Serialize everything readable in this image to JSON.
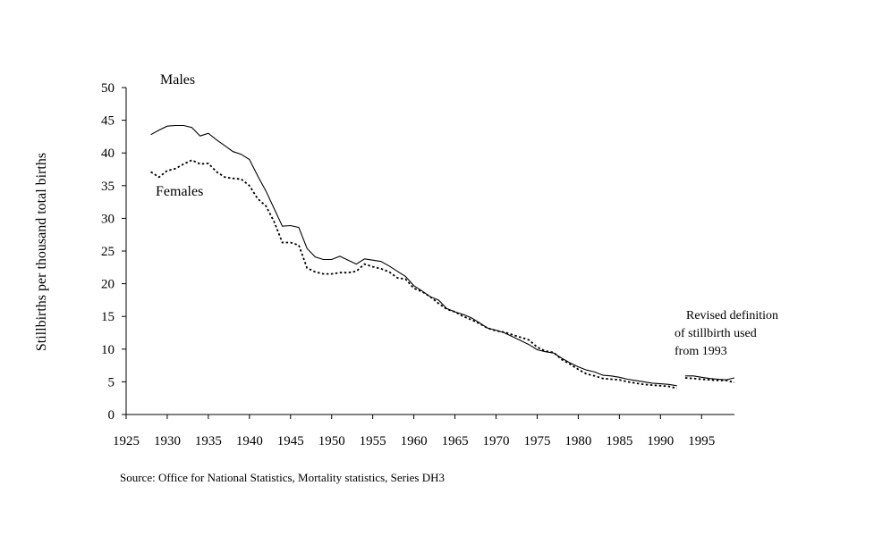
{
  "chart_data": {
    "type": "line",
    "title": "",
    "xlabel": "",
    "ylabel": "Stillbirths per thousand total births",
    "xlim": [
      1925,
      1999
    ],
    "ylim": [
      0,
      50
    ],
    "x_ticks": [
      "1925",
      "1930",
      "1935",
      "1940",
      "1945",
      "1950",
      "1955",
      "1960",
      "1965",
      "1970",
      "1975",
      "1980",
      "1985",
      "1990",
      "1995"
    ],
    "y_ticks": [
      "0",
      "5",
      "10",
      "15",
      "20",
      "25",
      "30",
      "35",
      "40",
      "45",
      "50"
    ],
    "grid": false,
    "legend": "inline labels",
    "series": [
      {
        "name": "Males",
        "line_style": "solid",
        "segments": [
          {
            "x": [
              1928,
              1929,
              1930,
              1931,
              1932,
              1933,
              1934,
              1935,
              1936,
              1937,
              1938,
              1939,
              1940,
              1941,
              1942,
              1943,
              1944,
              1945,
              1946,
              1947,
              1948,
              1949,
              1950,
              1951,
              1952,
              1953,
              1954,
              1955,
              1956,
              1957,
              1958,
              1959,
              1960,
              1961,
              1962,
              1963,
              1964,
              1965,
              1966,
              1967,
              1968,
              1969,
              1970,
              1971,
              1972,
              1973,
              1974,
              1975,
              1976,
              1977,
              1978,
              1979,
              1980,
              1981,
              1982,
              1983,
              1984,
              1985,
              1986,
              1987,
              1988,
              1989,
              1990,
              1991,
              1992
            ],
            "y": [
              42.8,
              43.5,
              44.1,
              44.2,
              44.2,
              43.9,
              42.6,
              43.0,
              42.0,
              41.1,
              40.2,
              39.8,
              39.0,
              36.5,
              34.2,
              31.5,
              28.8,
              28.9,
              28.6,
              25.4,
              24.1,
              23.7,
              23.7,
              24.2,
              23.6,
              23.0,
              23.8,
              23.6,
              23.4,
              22.7,
              21.9,
              21.1,
              19.7,
              18.9,
              18.0,
              17.5,
              16.2,
              15.7,
              15.3,
              14.8,
              14.0,
              13.2,
              12.9,
              12.5,
              11.9,
              11.3,
              10.7,
              9.9,
              9.6,
              9.4,
              8.6,
              7.9,
              7.3,
              6.8,
              6.5,
              6.0,
              5.9,
              5.7,
              5.4,
              5.2,
              5.0,
              4.8,
              4.7,
              4.6,
              4.4
            ]
          },
          {
            "x": [
              1993,
              1994,
              1995,
              1996,
              1997,
              1998,
              1999
            ],
            "y": [
              5.9,
              5.9,
              5.7,
              5.5,
              5.4,
              5.3,
              5.6
            ]
          }
        ]
      },
      {
        "name": "Females",
        "line_style": "dotted",
        "segments": [
          {
            "x": [
              1928,
              1929,
              1930,
              1931,
              1932,
              1933,
              1934,
              1935,
              1936,
              1937,
              1938,
              1939,
              1940,
              1941,
              1942,
              1943,
              1944,
              1945,
              1946,
              1947,
              1948,
              1949,
              1950,
              1951,
              1952,
              1953,
              1954,
              1955,
              1956,
              1957,
              1958,
              1959,
              1960,
              1961,
              1962,
              1963,
              1964,
              1965,
              1966,
              1967,
              1968,
              1969,
              1970,
              1971,
              1972,
              1973,
              1974,
              1975,
              1976,
              1977,
              1978,
              1979,
              1980,
              1981,
              1982,
              1983,
              1984,
              1985,
              1986,
              1987,
              1988,
              1989,
              1990,
              1991,
              1992
            ],
            "y": [
              37.1,
              36.3,
              37.3,
              37.6,
              38.3,
              38.9,
              38.3,
              38.4,
              37.1,
              36.3,
              36.1,
              36.0,
              35.0,
              33.0,
              31.9,
              29.5,
              26.3,
              26.3,
              25.9,
              22.4,
              21.8,
              21.5,
              21.5,
              21.7,
              21.7,
              21.9,
              23.0,
              22.6,
              22.3,
              21.8,
              20.9,
              20.7,
              19.3,
              18.8,
              18.0,
              17.0,
              16.1,
              15.7,
              15.0,
              14.5,
              13.9,
              13.2,
              12.8,
              12.6,
              12.2,
              11.8,
              11.4,
              10.3,
              9.7,
              9.5,
              8.4,
              7.7,
              6.9,
              6.2,
              5.9,
              5.5,
              5.4,
              5.3,
              5.0,
              4.8,
              4.6,
              4.5,
              4.4,
              4.3,
              4.0
            ]
          },
          {
            "x": [
              1993,
              1994,
              1995,
              1996,
              1997,
              1998,
              1999
            ],
            "y": [
              5.6,
              5.5,
              5.4,
              5.3,
              5.2,
              5.2,
              4.9
            ]
          }
        ]
      }
    ],
    "annotations": {
      "males_label": "Males",
      "females_label": "Females",
      "revision_note": [
        "Revised definition",
        "of stillbirth used",
        "from 1993"
      ]
    },
    "source": "Source: Office for National Statistics, Mortality statistics, Series DH3"
  }
}
